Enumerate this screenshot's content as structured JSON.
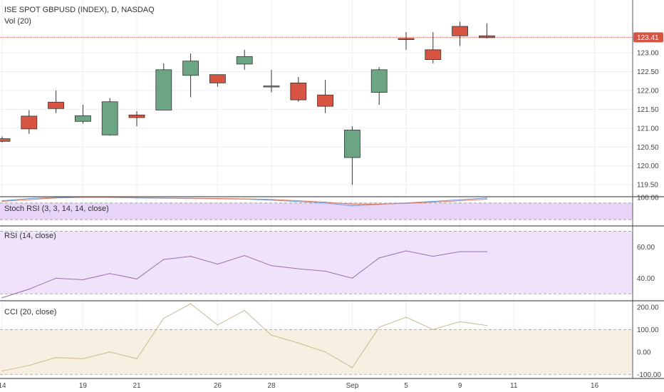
{
  "header": {
    "symbol_title": "ISE SPOT GBPUSD (INDEX), D, NASDAQ",
    "volume_label": "Vol (20)"
  },
  "colors": {
    "up": "#6ba583",
    "down": "#d75442",
    "grid": "#e9eef3",
    "rsi_line": "#9a6fae",
    "cci_line": "#c8b894",
    "stoch_k": "#6a9be0",
    "stoch_d": "#e07a5f",
    "stoch_band": "#e8d4f7",
    "rsi_band": "#efe2fa",
    "cci_band": "#f7efe2",
    "last_price": "#d75442"
  },
  "chart_data": [
    {
      "type": "candlestick",
      "panel": "price",
      "title": "ISE SPOT GBPUSD (INDEX), D, NASDAQ",
      "ylim": [
        119.2,
        124.4
      ],
      "y_ticks": [
        119.5,
        120.0,
        120.5,
        121.0,
        121.5,
        122.0,
        122.5,
        123.0
      ],
      "x_tick_labels": [
        {
          "label": "14",
          "index": 0
        },
        {
          "label": "19",
          "index": 3
        },
        {
          "label": "21",
          "index": 5
        },
        {
          "label": "26",
          "index": 8
        },
        {
          "label": "28",
          "index": 10
        },
        {
          "label": "Sep",
          "index": 13
        },
        {
          "label": "5",
          "index": 15
        },
        {
          "label": "9",
          "index": 17
        },
        {
          "label": "11",
          "index": 19
        },
        {
          "label": "16",
          "index": 22
        }
      ],
      "x_range": [
        0,
        23.4
      ],
      "last_price": 123.41,
      "candles": [
        {
          "i": 0,
          "o": 120.72,
          "h": 120.78,
          "l": 120.62,
          "c": 120.65
        },
        {
          "i": 1,
          "o": 121.32,
          "h": 121.48,
          "l": 120.85,
          "c": 120.98
        },
        {
          "i": 2,
          "o": 121.69,
          "h": 122.0,
          "l": 121.4,
          "c": 121.52
        },
        {
          "i": 3,
          "o": 121.18,
          "h": 121.62,
          "l": 121.12,
          "c": 121.33
        },
        {
          "i": 4,
          "o": 120.82,
          "h": 121.8,
          "l": 120.8,
          "c": 121.7
        },
        {
          "i": 5,
          "o": 121.35,
          "h": 121.45,
          "l": 121.05,
          "c": 121.28
        },
        {
          "i": 6,
          "o": 121.48,
          "h": 122.72,
          "l": 121.48,
          "c": 122.55
        },
        {
          "i": 7,
          "o": 122.4,
          "h": 122.98,
          "l": 121.82,
          "c": 122.78
        },
        {
          "i": 8,
          "o": 122.42,
          "h": 122.42,
          "l": 122.1,
          "c": 122.2
        },
        {
          "i": 9,
          "o": 122.7,
          "h": 123.08,
          "l": 122.55,
          "c": 122.9
        },
        {
          "i": 10,
          "o": 122.1,
          "h": 122.55,
          "l": 121.95,
          "c": 122.12
        },
        {
          "i": 11,
          "o": 122.2,
          "h": 122.36,
          "l": 121.7,
          "c": 121.75
        },
        {
          "i": 12,
          "o": 121.88,
          "h": 122.28,
          "l": 121.4,
          "c": 121.58
        },
        {
          "i": 13,
          "o": 120.22,
          "h": 121.05,
          "l": 119.5,
          "c": 120.95
        },
        {
          "i": 14,
          "o": 121.95,
          "h": 122.62,
          "l": 121.62,
          "c": 122.55
        },
        {
          "i": 15,
          "o": 123.38,
          "h": 123.55,
          "l": 123.08,
          "c": 123.35
        },
        {
          "i": 16,
          "o": 123.08,
          "h": 123.55,
          "l": 122.72,
          "c": 122.82
        },
        {
          "i": 17,
          "o": 123.7,
          "h": 123.82,
          "l": 123.18,
          "c": 123.45
        },
        {
          "i": 18,
          "o": 123.45,
          "h": 123.78,
          "l": 123.38,
          "c": 123.4
        }
      ]
    },
    {
      "type": "line",
      "panel": "stoch_rsi",
      "title": "Stoch RSI (3, 3, 14, 14, close)",
      "ylim": [
        0,
        100
      ],
      "y_ticks": [
        100
      ],
      "band": [
        20,
        80
      ],
      "series": [
        {
          "values": [
            88,
            96,
            100,
            100,
            100,
            98,
            97,
            96,
            95,
            94,
            90,
            85,
            80,
            70,
            75,
            80,
            86,
            92,
            98
          ]
        },
        {
          "values": [
            86,
            92,
            98,
            100,
            100,
            99,
            98,
            97,
            96,
            95,
            93,
            88,
            83,
            76,
            76,
            79,
            83,
            88,
            94
          ]
        }
      ]
    },
    {
      "type": "line",
      "panel": "rsi",
      "title": "RSI (14, close)",
      "ylim": [
        26,
        73
      ],
      "y_ticks": [
        40,
        60
      ],
      "band": [
        30,
        70
      ],
      "series": [
        {
          "values": [
            27.5,
            33,
            40,
            39,
            43,
            39.5,
            52,
            54,
            49,
            54.5,
            48,
            46,
            44.5,
            40,
            53,
            57.5,
            54,
            57,
            57
          ]
        }
      ]
    },
    {
      "type": "line",
      "panel": "cci",
      "title": "CCI (20, close)",
      "ylim": [
        -115,
        225
      ],
      "y_ticks": [
        200,
        100,
        0,
        -100
      ],
      "band": [
        -100,
        100
      ],
      "series": [
        {
          "values": [
            -85,
            -60,
            -25,
            -30,
            0,
            -30,
            150,
            215,
            120,
            185,
            75,
            40,
            0,
            -70,
            110,
            155,
            100,
            135,
            118
          ]
        }
      ]
    }
  ]
}
